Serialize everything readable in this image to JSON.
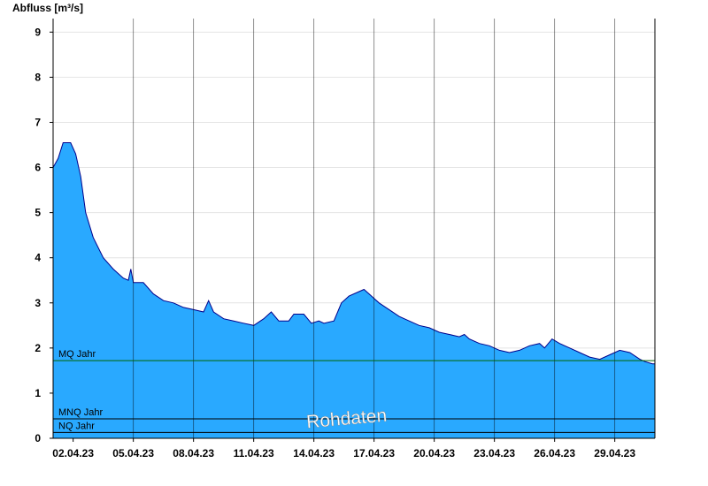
{
  "chart_data": {
    "type": "area",
    "ylabel": "Abfluss [m³/s]",
    "ylim": [
      0,
      9.3
    ],
    "yticks": [
      0,
      1,
      2,
      3,
      4,
      5,
      6,
      7,
      8,
      9
    ],
    "x_range": [
      "2023-04-01T00:00",
      "2023-05-01T00:00"
    ],
    "xticks": [
      {
        "date": "2023-04-02",
        "label": "02.04.23"
      },
      {
        "date": "2023-04-05",
        "label": "05.04.23"
      },
      {
        "date": "2023-04-08",
        "label": "08.04.23"
      },
      {
        "date": "2023-04-11",
        "label": "11.04.23"
      },
      {
        "date": "2023-04-14",
        "label": "14.04.23"
      },
      {
        "date": "2023-04-17",
        "label": "17.04.23"
      },
      {
        "date": "2023-04-20",
        "label": "20.04.23"
      },
      {
        "date": "2023-04-23",
        "label": "23.04.23"
      },
      {
        "date": "2023-04-26",
        "label": "26.04.23"
      },
      {
        "date": "2023-04-29",
        "label": "29.04.23"
      }
    ],
    "grid": true,
    "fill_color": "#29a9ff",
    "line_color": "#00008b",
    "series": [
      {
        "values": [
          [
            "2023-04-01T00:00",
            6.0
          ],
          [
            "2023-04-01T06:00",
            6.2
          ],
          [
            "2023-04-01T12:00",
            6.55
          ],
          [
            "2023-04-01T21:00",
            6.55
          ],
          [
            "2023-04-02T03:00",
            6.3
          ],
          [
            "2023-04-02T09:00",
            5.8
          ],
          [
            "2023-04-02T15:00",
            5.0
          ],
          [
            "2023-04-03T00:00",
            4.45
          ],
          [
            "2023-04-03T12:00",
            4.0
          ],
          [
            "2023-04-04T00:00",
            3.75
          ],
          [
            "2023-04-04T12:00",
            3.55
          ],
          [
            "2023-04-04T18:00",
            3.5
          ],
          [
            "2023-04-04T21:00",
            3.75
          ],
          [
            "2023-04-05T00:00",
            3.45
          ],
          [
            "2023-04-05T12:00",
            3.45
          ],
          [
            "2023-04-06T00:00",
            3.2
          ],
          [
            "2023-04-06T12:00",
            3.05
          ],
          [
            "2023-04-07T00:00",
            3.0
          ],
          [
            "2023-04-07T12:00",
            2.9
          ],
          [
            "2023-04-08T00:00",
            2.85
          ],
          [
            "2023-04-08T12:00",
            2.8
          ],
          [
            "2023-04-08T18:00",
            3.05
          ],
          [
            "2023-04-09T00:00",
            2.8
          ],
          [
            "2023-04-09T12:00",
            2.65
          ],
          [
            "2023-04-10T00:00",
            2.6
          ],
          [
            "2023-04-10T12:00",
            2.55
          ],
          [
            "2023-04-11T00:00",
            2.5
          ],
          [
            "2023-04-11T12:00",
            2.65
          ],
          [
            "2023-04-11T21:00",
            2.8
          ],
          [
            "2023-04-12T06:00",
            2.6
          ],
          [
            "2023-04-12T18:00",
            2.6
          ],
          [
            "2023-04-13T00:00",
            2.75
          ],
          [
            "2023-04-13T12:00",
            2.75
          ],
          [
            "2023-04-13T21:00",
            2.55
          ],
          [
            "2023-04-14T06:00",
            2.6
          ],
          [
            "2023-04-14T12:00",
            2.55
          ],
          [
            "2023-04-15T00:00",
            2.6
          ],
          [
            "2023-04-15T09:00",
            3.0
          ],
          [
            "2023-04-15T18:00",
            3.15
          ],
          [
            "2023-04-16T06:00",
            3.25
          ],
          [
            "2023-04-16T12:00",
            3.3
          ],
          [
            "2023-04-16T21:00",
            3.15
          ],
          [
            "2023-04-17T06:00",
            3.0
          ],
          [
            "2023-04-17T18:00",
            2.85
          ],
          [
            "2023-04-18T06:00",
            2.7
          ],
          [
            "2023-04-18T18:00",
            2.6
          ],
          [
            "2023-04-19T06:00",
            2.5
          ],
          [
            "2023-04-19T18:00",
            2.45
          ],
          [
            "2023-04-20T06:00",
            2.35
          ],
          [
            "2023-04-20T18:00",
            2.3
          ],
          [
            "2023-04-21T06:00",
            2.25
          ],
          [
            "2023-04-21T12:00",
            2.3
          ],
          [
            "2023-04-21T18:00",
            2.2
          ],
          [
            "2023-04-22T06:00",
            2.1
          ],
          [
            "2023-04-22T18:00",
            2.05
          ],
          [
            "2023-04-23T06:00",
            1.95
          ],
          [
            "2023-04-23T18:00",
            1.9
          ],
          [
            "2023-04-24T06:00",
            1.95
          ],
          [
            "2023-04-24T18:00",
            2.05
          ],
          [
            "2023-04-25T06:00",
            2.1
          ],
          [
            "2023-04-25T12:00",
            2.0
          ],
          [
            "2023-04-25T21:00",
            2.2
          ],
          [
            "2023-04-26T06:00",
            2.1
          ],
          [
            "2023-04-26T18:00",
            2.0
          ],
          [
            "2023-04-27T06:00",
            1.9
          ],
          [
            "2023-04-27T18:00",
            1.8
          ],
          [
            "2023-04-28T06:00",
            1.75
          ],
          [
            "2023-04-28T18:00",
            1.85
          ],
          [
            "2023-04-29T06:00",
            1.95
          ],
          [
            "2023-04-29T18:00",
            1.9
          ],
          [
            "2023-04-30T06:00",
            1.75
          ],
          [
            "2023-04-30T12:00",
            1.7
          ],
          [
            "2023-04-30T21:00",
            1.65
          ],
          [
            "2023-05-01T00:00",
            1.65
          ]
        ]
      }
    ],
    "reference_lines": [
      {
        "label": "MQ Jahr",
        "value": 1.72,
        "color": "#006400"
      },
      {
        "label": "MNQ Jahr",
        "value": 0.43,
        "color": "#000000"
      },
      {
        "label": "NQ Jahr",
        "value": 0.13,
        "color": "#000000"
      }
    ],
    "watermark": "Rohdaten"
  }
}
